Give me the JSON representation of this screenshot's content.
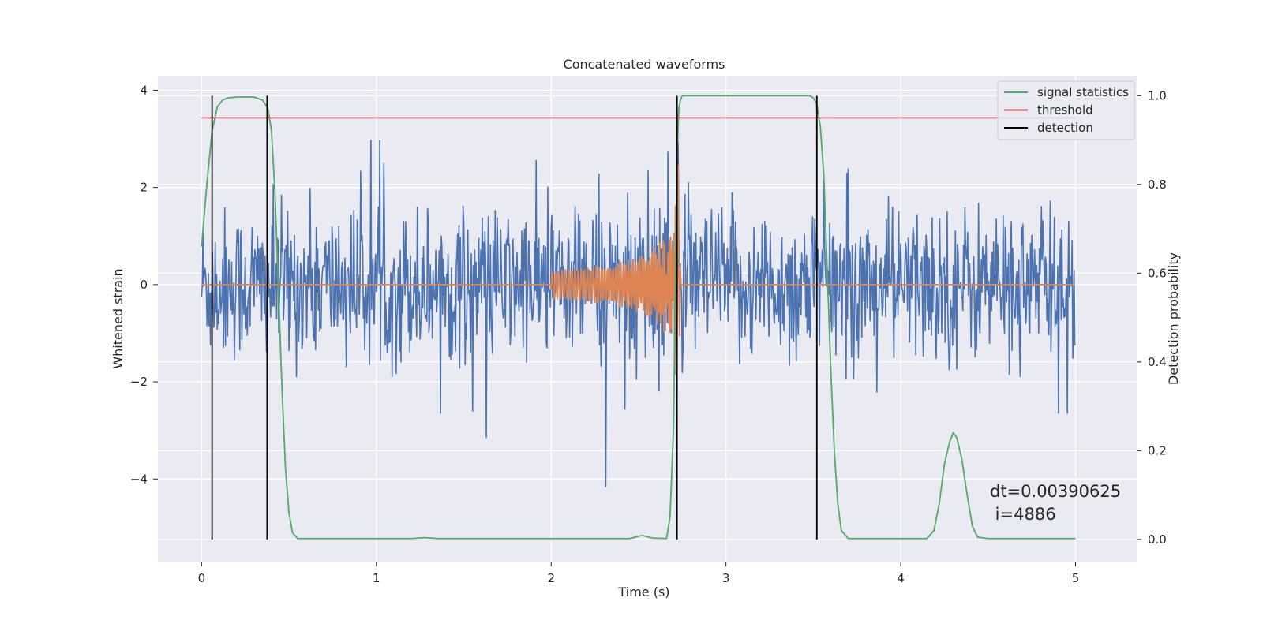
{
  "chart_data": {
    "type": "line",
    "title": "Concatenated waveforms",
    "xlabel": "Time (s)",
    "ylabel": "Whitened strain",
    "ylabel_right": "Detection probability",
    "xlim": [
      -0.25,
      5.35
    ],
    "ylim": [
      -5.7,
      4.3
    ],
    "ylim_right": [
      -0.05,
      1.045
    ],
    "x_ticks": [
      0,
      1,
      2,
      3,
      4,
      5
    ],
    "y_ticks": [
      -4,
      -2,
      0,
      2,
      4
    ],
    "y_ticks_right": [
      0.0,
      0.2,
      0.4,
      0.6,
      0.8,
      1.0
    ],
    "x_tick_labels": [
      "0",
      "1",
      "2",
      "3",
      "4",
      "5"
    ],
    "y_tick_labels": [
      "−4",
      "−2",
      "0",
      "2",
      "4"
    ],
    "y_tick_labels_right": [
      "0.0",
      "0.2",
      "0.4",
      "0.6",
      "0.8",
      "1.0"
    ],
    "grid": true,
    "legend_position": "top-right",
    "legend": [
      {
        "label": "signal statistics",
        "color": "#55a868"
      },
      {
        "label": "threshold",
        "color": "#c44e52"
      },
      {
        "label": "detection",
        "color": "#000000"
      }
    ],
    "annotation": {
      "line1": "dt=0.00390625",
      "line2": " i=4886"
    },
    "colors": {
      "strain": "#4c72b0",
      "template": "#dd8452",
      "statistic": "#55a868",
      "threshold": "#c44e52",
      "detection": "#000000",
      "background": "#eaeaf2",
      "grid": "#ffffff"
    },
    "series": [
      {
        "axis": "left",
        "description": "whitened noisy strain, t from 0 to 5 s, dt=0.00390625"
      },
      {
        "axis": "left",
        "description": "chirp template from t=2.0 to t=2.74 s"
      },
      {
        "name": "signal statistics",
        "axis": "right",
        "x": [
          0.0,
          0.03,
          0.06,
          0.09,
          0.12,
          0.15,
          0.2,
          0.3,
          0.35,
          0.38,
          0.4,
          0.42,
          0.44,
          0.46,
          0.48,
          0.5,
          0.52,
          0.55,
          1.2,
          1.28,
          1.35,
          2.45,
          2.52,
          2.58,
          2.66,
          2.68,
          2.7,
          2.71,
          2.72,
          2.73,
          2.74,
          2.75,
          3.48,
          3.5,
          3.52,
          3.54,
          3.56,
          3.58,
          3.6,
          3.62,
          3.64,
          3.66,
          3.7,
          4.15,
          4.19,
          4.22,
          4.25,
          4.28,
          4.3,
          4.32,
          4.35,
          4.38,
          4.41,
          4.44,
          4.5,
          5.0
        ],
        "y": [
          0.66,
          0.8,
          0.92,
          0.975,
          0.99,
          0.995,
          0.997,
          0.997,
          0.99,
          0.97,
          0.92,
          0.78,
          0.56,
          0.34,
          0.16,
          0.06,
          0.015,
          0.002,
          0.002,
          0.004,
          0.002,
          0.002,
          0.009,
          0.003,
          0.002,
          0.05,
          0.25,
          0.55,
          0.85,
          0.97,
          0.99,
          1.0,
          1.0,
          0.995,
          0.98,
          0.93,
          0.82,
          0.6,
          0.38,
          0.2,
          0.08,
          0.02,
          0.002,
          0.002,
          0.02,
          0.08,
          0.17,
          0.22,
          0.24,
          0.23,
          0.18,
          0.1,
          0.03,
          0.005,
          0.002,
          0.002
        ]
      },
      {
        "name": "threshold",
        "axis": "right",
        "x": [
          0,
          5
        ],
        "y": [
          0.95,
          0.95
        ]
      },
      {
        "name": "detection",
        "axis": "right",
        "x": [
          0.06,
          0.375,
          2.72,
          3.52
        ],
        "y_range": [
          0.0,
          1.0
        ]
      }
    ]
  }
}
